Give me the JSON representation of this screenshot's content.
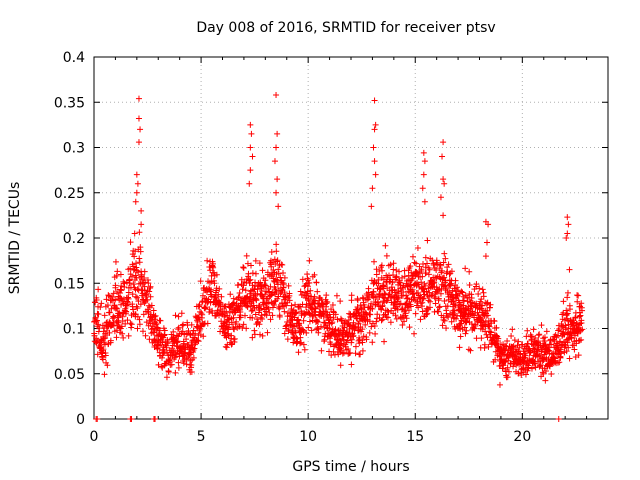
{
  "chart_data": {
    "type": "scatter",
    "title": "Day 008 of 2016, SRMTID for receiver ptsv",
    "xlabel": "GPS time / hours",
    "ylabel": "SRMTID / TECUs",
    "xlim": [
      0,
      24
    ],
    "ylim": [
      0,
      0.4
    ],
    "x_ticks": [
      0,
      5,
      10,
      15,
      20
    ],
    "x_tick_labels": [
      "0",
      "5",
      "10",
      "15",
      "20"
    ],
    "y_ticks": [
      0,
      0.05,
      0.1,
      0.15,
      0.2,
      0.25,
      0.3,
      0.35,
      0.4
    ],
    "y_tick_labels": [
      "0",
      "0.05",
      "0.1",
      "0.15",
      "0.2",
      "0.25",
      "0.3",
      "0.35",
      "0.4"
    ],
    "grid": true,
    "marker": "plus",
    "marker_color": "#ff0000",
    "series": [
      {
        "name": "SRMTID",
        "profile": [
          [
            0.0,
            0.11,
            0.04
          ],
          [
            0.5,
            0.08,
            0.05
          ],
          [
            1.0,
            0.13,
            0.06
          ],
          [
            1.5,
            0.12,
            0.05
          ],
          [
            2.0,
            0.15,
            0.07
          ],
          [
            2.5,
            0.12,
            0.05
          ],
          [
            3.0,
            0.09,
            0.04
          ],
          [
            3.5,
            0.07,
            0.03
          ],
          [
            4.0,
            0.08,
            0.04
          ],
          [
            4.5,
            0.08,
            0.04
          ],
          [
            5.0,
            0.11,
            0.04
          ],
          [
            5.5,
            0.15,
            0.05
          ],
          [
            6.0,
            0.11,
            0.04
          ],
          [
            6.5,
            0.11,
            0.04
          ],
          [
            7.0,
            0.14,
            0.05
          ],
          [
            7.5,
            0.13,
            0.05
          ],
          [
            8.0,
            0.13,
            0.05
          ],
          [
            8.5,
            0.16,
            0.06
          ],
          [
            9.0,
            0.12,
            0.05
          ],
          [
            9.5,
            0.1,
            0.04
          ],
          [
            10.0,
            0.13,
            0.05
          ],
          [
            10.5,
            0.12,
            0.04
          ],
          [
            11.0,
            0.1,
            0.04
          ],
          [
            11.5,
            0.09,
            0.04
          ],
          [
            12.0,
            0.1,
            0.04
          ],
          [
            12.5,
            0.11,
            0.04
          ],
          [
            13.0,
            0.13,
            0.05
          ],
          [
            13.5,
            0.14,
            0.05
          ],
          [
            14.0,
            0.14,
            0.05
          ],
          [
            14.5,
            0.13,
            0.04
          ],
          [
            15.0,
            0.15,
            0.05
          ],
          [
            15.5,
            0.14,
            0.05
          ],
          [
            16.0,
            0.15,
            0.05
          ],
          [
            16.5,
            0.14,
            0.05
          ],
          [
            17.0,
            0.12,
            0.04
          ],
          [
            17.5,
            0.12,
            0.04
          ],
          [
            18.0,
            0.12,
            0.04
          ],
          [
            18.5,
            0.1,
            0.04
          ],
          [
            19.0,
            0.07,
            0.03
          ],
          [
            19.5,
            0.07,
            0.03
          ],
          [
            20.0,
            0.07,
            0.03
          ],
          [
            20.5,
            0.08,
            0.03
          ],
          [
            21.0,
            0.07,
            0.03
          ],
          [
            21.5,
            0.07,
            0.03
          ],
          [
            22.0,
            0.1,
            0.04
          ],
          [
            22.5,
            0.1,
            0.04
          ],
          [
            22.8,
            0.11,
            0.03
          ]
        ],
        "spikes": [
          [
            2.1,
            0.354
          ],
          [
            2.1,
            0.332
          ],
          [
            2.15,
            0.32
          ],
          [
            2.1,
            0.306
          ],
          [
            2.0,
            0.27
          ],
          [
            2.05,
            0.26
          ],
          [
            2.0,
            0.25
          ],
          [
            1.95,
            0.24
          ],
          [
            2.2,
            0.23
          ],
          [
            2.2,
            0.215
          ],
          [
            1.9,
            0.205
          ],
          [
            7.3,
            0.325
          ],
          [
            7.35,
            0.315
          ],
          [
            7.3,
            0.3
          ],
          [
            7.4,
            0.29
          ],
          [
            7.3,
            0.275
          ],
          [
            7.25,
            0.26
          ],
          [
            8.5,
            0.358
          ],
          [
            8.55,
            0.315
          ],
          [
            8.5,
            0.3
          ],
          [
            8.45,
            0.285
          ],
          [
            8.55,
            0.265
          ],
          [
            8.5,
            0.25
          ],
          [
            8.6,
            0.235
          ],
          [
            13.1,
            0.352
          ],
          [
            13.15,
            0.325
          ],
          [
            13.1,
            0.32
          ],
          [
            13.05,
            0.3
          ],
          [
            13.1,
            0.285
          ],
          [
            13.15,
            0.27
          ],
          [
            13.0,
            0.255
          ],
          [
            12.95,
            0.235
          ],
          [
            15.4,
            0.294
          ],
          [
            15.45,
            0.285
          ],
          [
            15.4,
            0.27
          ],
          [
            15.35,
            0.255
          ],
          [
            15.45,
            0.24
          ],
          [
            16.3,
            0.306
          ],
          [
            16.25,
            0.29
          ],
          [
            16.3,
            0.265
          ],
          [
            16.35,
            0.26
          ],
          [
            16.2,
            0.245
          ],
          [
            16.3,
            0.225
          ],
          [
            18.3,
            0.218
          ],
          [
            18.4,
            0.215
          ],
          [
            18.35,
            0.195
          ],
          [
            18.3,
            0.18
          ],
          [
            22.1,
            0.223
          ],
          [
            22.15,
            0.215
          ],
          [
            22.1,
            0.205
          ],
          [
            22.05,
            0.2
          ],
          [
            22.2,
            0.165
          ]
        ],
        "zero_points": [
          0.1,
          0.15,
          1.7,
          1.75,
          2.8,
          2.85,
          21.7
        ]
      }
    ]
  }
}
